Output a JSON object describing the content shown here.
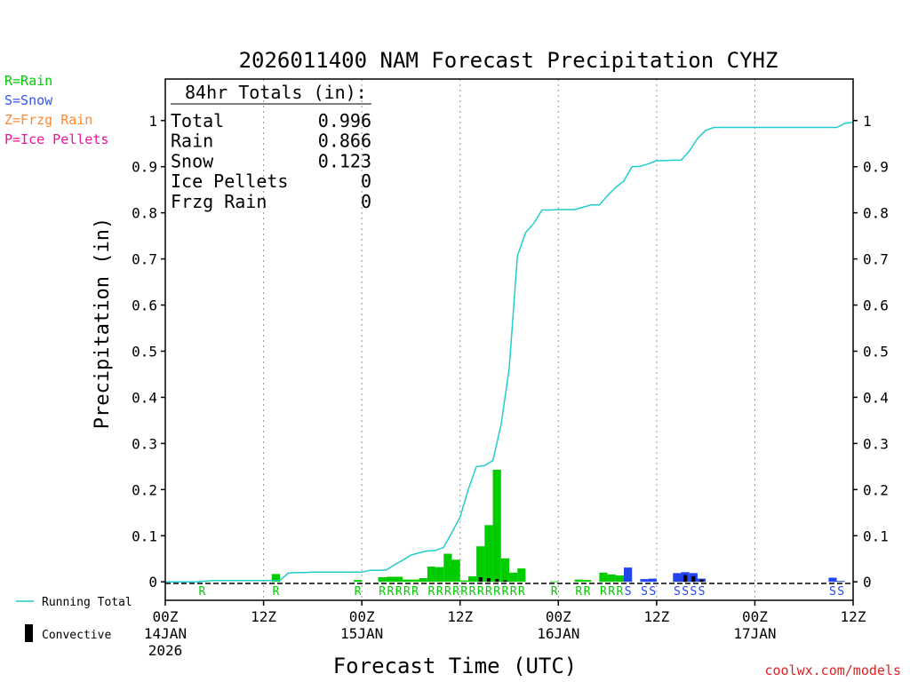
{
  "chart_data": {
    "type": "bar",
    "title": "2026011400 NAM Forecast Precipitation CYHZ",
    "xlabel": "Forecast Time (UTC)",
    "ylabel": "Precipitation (in)",
    "ylim": [
      -0.04,
      1.09
    ],
    "xlim_hours": [
      0,
      84
    ],
    "y_ticks": [
      0,
      0.1,
      0.2,
      0.3,
      0.4,
      0.5,
      0.6,
      0.7,
      0.8,
      0.9,
      1
    ],
    "y_tick_labels": [
      "0",
      "0.1",
      "0.2",
      "0.3",
      "0.4",
      "0.5",
      "0.6",
      "0.7",
      "0.8",
      "0.9",
      "1"
    ],
    "x_ticks": [
      {
        "hour": 0,
        "label": "00Z",
        "date": "14JAN",
        "year": "2026"
      },
      {
        "hour": 12,
        "label": "12Z",
        "date": "",
        "year": ""
      },
      {
        "hour": 24,
        "label": "00Z",
        "date": "15JAN",
        "year": ""
      },
      {
        "hour": 36,
        "label": "12Z",
        "date": "",
        "year": ""
      },
      {
        "hour": 48,
        "label": "00Z",
        "date": "16JAN",
        "year": ""
      },
      {
        "hour": 60,
        "label": "12Z",
        "date": "",
        "year": ""
      },
      {
        "hour": 72,
        "label": "00Z",
        "date": "17JAN",
        "year": ""
      },
      {
        "hour": 84,
        "label": "12Z",
        "date": "",
        "year": ""
      }
    ],
    "totals_box": {
      "title": "84hr Totals (in):",
      "rows": [
        {
          "label": "Total",
          "value": "0.996"
        },
        {
          "label": "Rain",
          "value": "0.866"
        },
        {
          "label": "Snow",
          "value": "0.123"
        },
        {
          "label": "Ice Pellets",
          "value": "0"
        },
        {
          "label": "Frzg Rain",
          "value": "0"
        }
      ]
    },
    "type_legend": [
      {
        "text": "R=Rain",
        "color": "#00cc00"
      },
      {
        "text": "S=Snow",
        "color": "#3355ee"
      },
      {
        "text": "Z=Frzg Rain",
        "color": "#ff8833"
      },
      {
        "text": "P=Ice Pellets",
        "color": "#ee1199"
      }
    ],
    "series_legend": [
      {
        "name": "Running Total",
        "color": "#22cccc"
      },
      {
        "name": "Convective",
        "color": "#000000"
      }
    ],
    "running_total": {
      "hours": [
        0,
        3,
        4,
        5,
        6,
        7,
        8,
        9,
        10,
        11,
        12,
        13,
        14,
        15,
        16,
        17,
        18,
        19,
        20,
        21,
        22,
        23,
        24,
        25,
        26,
        27,
        28,
        29,
        30,
        31,
        32,
        33,
        34,
        35,
        36,
        37,
        38,
        39,
        40,
        41,
        42,
        43,
        44,
        45,
        46,
        47,
        48,
        49,
        50,
        51,
        52,
        53,
        54,
        55,
        56,
        57,
        58,
        59,
        60,
        61,
        62,
        63,
        64,
        65,
        66,
        67,
        68,
        69,
        70,
        71,
        72,
        73,
        74,
        75,
        76,
        77,
        78,
        79,
        80,
        81,
        82,
        83,
        84
      ],
      "values": [
        0,
        0,
        0,
        0.002,
        0.003,
        0.003,
        0.003,
        0.003,
        0.003,
        0.003,
        0.003,
        0.003,
        0.003,
        0.019,
        0.02,
        0.02,
        0.021,
        0.021,
        0.021,
        0.021,
        0.021,
        0.021,
        0.021,
        0.025,
        0.025,
        0.026,
        0.037,
        0.047,
        0.058,
        0.063,
        0.067,
        0.068,
        0.075,
        0.107,
        0.14,
        0.2,
        0.25,
        0.252,
        0.263,
        0.34,
        0.463,
        0.706,
        0.757,
        0.777,
        0.806,
        0.806,
        0.807,
        0.807,
        0.807,
        0.812,
        0.817,
        0.817,
        0.837,
        0.855,
        0.869,
        0.9,
        0.901,
        0.906,
        0.913,
        0.913,
        0.914,
        0.914,
        0.934,
        0.961,
        0.979,
        0.985,
        0.985,
        0.985,
        0.985,
        0.985,
        0.985,
        0.985,
        0.985,
        0.985,
        0.985,
        0.985,
        0.985,
        0.985,
        0.985,
        0.985,
        0.985,
        0.994,
        0.996
      ]
    },
    "bars": [
      {
        "hour": 5,
        "value": 0.002,
        "conv": 0,
        "type": "R"
      },
      {
        "hour": 14,
        "value": 0.017,
        "conv": 0,
        "type": "R"
      },
      {
        "hour": 24,
        "value": 0.004,
        "conv": 0,
        "type": "R"
      },
      {
        "hour": 27,
        "value": 0.01,
        "conv": 0,
        "type": "R"
      },
      {
        "hour": 28,
        "value": 0.011,
        "conv": 0,
        "type": "R"
      },
      {
        "hour": 29,
        "value": 0.011,
        "conv": 0,
        "type": "R"
      },
      {
        "hour": 30,
        "value": 0.005,
        "conv": 0,
        "type": "R"
      },
      {
        "hour": 31,
        "value": 0.005,
        "conv": 0,
        "type": "R"
      },
      {
        "hour": 32,
        "value": 0.008,
        "conv": 0,
        "type": "R"
      },
      {
        "hour": 33,
        "value": 0.033,
        "conv": 0,
        "type": "R"
      },
      {
        "hour": 34,
        "value": 0.032,
        "conv": 0,
        "type": "R"
      },
      {
        "hour": 35,
        "value": 0.061,
        "conv": 0,
        "type": "R"
      },
      {
        "hour": 36,
        "value": 0.048,
        "conv": 0,
        "type": "R"
      },
      {
        "hour": 37,
        "value": 0.003,
        "conv": 0,
        "type": "R"
      },
      {
        "hour": 38,
        "value": 0.012,
        "conv": 0,
        "type": "R"
      },
      {
        "hour": 39,
        "value": 0.077,
        "conv": 0.01,
        "type": "R"
      },
      {
        "hour": 40,
        "value": 0.123,
        "conv": 0.008,
        "type": "R"
      },
      {
        "hour": 41,
        "value": 0.243,
        "conv": 0.006,
        "type": "R"
      },
      {
        "hour": 42,
        "value": 0.051,
        "conv": 0.003,
        "type": "R"
      },
      {
        "hour": 43,
        "value": 0.02,
        "conv": 0,
        "type": "R"
      },
      {
        "hour": 44,
        "value": 0.029,
        "conv": 0,
        "type": "R"
      },
      {
        "hour": 48,
        "value": 0.001,
        "conv": 0,
        "type": "R"
      },
      {
        "hour": 51,
        "value": 0.005,
        "conv": 0,
        "type": "R"
      },
      {
        "hour": 52,
        "value": 0.004,
        "conv": 0,
        "type": "R"
      },
      {
        "hour": 54,
        "value": 0.02,
        "conv": 0,
        "type": "R"
      },
      {
        "hour": 55,
        "value": 0.016,
        "conv": 0,
        "type": "R"
      },
      {
        "hour": 56,
        "value": 0.014,
        "conv": 0,
        "type": "R"
      },
      {
        "hour": 57,
        "value": 0.031,
        "conv": 0,
        "type": "S"
      },
      {
        "hour": 59,
        "value": 0.006,
        "conv": 0,
        "type": "S"
      },
      {
        "hour": 60,
        "value": 0.007,
        "conv": 0,
        "type": "S"
      },
      {
        "hour": 63,
        "value": 0.019,
        "conv": 0,
        "type": "S"
      },
      {
        "hour": 64,
        "value": 0.021,
        "conv": 0.015,
        "type": "S"
      },
      {
        "hour": 65,
        "value": 0.019,
        "conv": 0.012,
        "type": "S"
      },
      {
        "hour": 66,
        "value": 0.007,
        "conv": 0.005,
        "type": "S"
      },
      {
        "hour": 82,
        "value": 0.009,
        "conv": 0,
        "type": "S"
      },
      {
        "hour": 83,
        "value": 0.002,
        "conv": 0,
        "type": "S"
      }
    ],
    "type_markers": [
      {
        "hour": 5,
        "type": "R"
      },
      {
        "hour": 14,
        "type": "R"
      },
      {
        "hour": 24,
        "type": "R"
      },
      {
        "hour": 27,
        "type": "R"
      },
      {
        "hour": 28,
        "type": "R"
      },
      {
        "hour": 29,
        "type": "R"
      },
      {
        "hour": 30,
        "type": "R"
      },
      {
        "hour": 31,
        "type": "R"
      },
      {
        "hour": 33,
        "type": "R"
      },
      {
        "hour": 34,
        "type": "R"
      },
      {
        "hour": 35,
        "type": "R"
      },
      {
        "hour": 36,
        "type": "R"
      },
      {
        "hour": 37,
        "type": "R"
      },
      {
        "hour": 38,
        "type": "R"
      },
      {
        "hour": 39,
        "type": "R"
      },
      {
        "hour": 40,
        "type": "R"
      },
      {
        "hour": 41,
        "type": "R"
      },
      {
        "hour": 42,
        "type": "R"
      },
      {
        "hour": 43,
        "type": "R"
      },
      {
        "hour": 44,
        "type": "R"
      },
      {
        "hour": 48,
        "type": "R"
      },
      {
        "hour": 51,
        "type": "R"
      },
      {
        "hour": 52,
        "type": "R"
      },
      {
        "hour": 54,
        "type": "R"
      },
      {
        "hour": 55,
        "type": "R"
      },
      {
        "hour": 56,
        "type": "R"
      },
      {
        "hour": 57,
        "type": "S"
      },
      {
        "hour": 59,
        "type": "S"
      },
      {
        "hour": 60,
        "type": "S"
      },
      {
        "hour": 63,
        "type": "S"
      },
      {
        "hour": 64,
        "type": "S"
      },
      {
        "hour": 65,
        "type": "S"
      },
      {
        "hour": 66,
        "type": "S"
      },
      {
        "hour": 82,
        "type": "S"
      },
      {
        "hour": 83,
        "type": "S"
      }
    ],
    "colors": {
      "rain": "#00cc00",
      "snow": "#2244ee",
      "running_total": "#22cccc",
      "convective": "#000000",
      "grid": "#999999",
      "watermark": "#dd2222"
    }
  },
  "watermark": "coolwx.com/models"
}
